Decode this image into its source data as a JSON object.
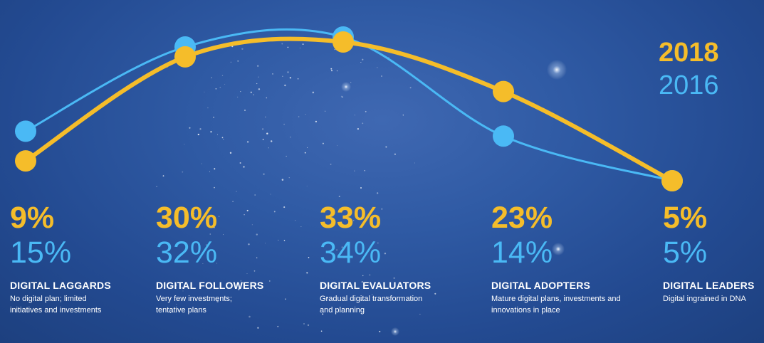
{
  "chart_data": {
    "type": "line",
    "categories": [
      "DIGITAL LAGGARDS",
      "DIGITAL FOLLOWERS",
      "DIGITAL EVALUATORS",
      "DIGITAL ADOPTERS",
      "DIGITAL LEADERS"
    ],
    "descriptions": [
      "No digital plan; limited initiatives and investments",
      "Very few investments; tentative plans",
      "Gradual digital transformation and planning",
      "Mature digital plans, investments and innovations in place",
      "Digital ingrained in DNA"
    ],
    "series": [
      {
        "name": "2018",
        "color": "#f5bd2a",
        "values": [
          9,
          30,
          33,
          23,
          5
        ],
        "labels": [
          "9%",
          "30%",
          "33%",
          "23%",
          "5%"
        ]
      },
      {
        "name": "2016",
        "color": "#4ab9f5",
        "values": [
          15,
          32,
          34,
          14,
          5
        ],
        "labels": [
          "15%",
          "32%",
          "34%",
          "14%",
          "5%"
        ]
      }
    ],
    "ylim": [
      0,
      40
    ],
    "grid": false,
    "legend_position": "top-right"
  }
}
